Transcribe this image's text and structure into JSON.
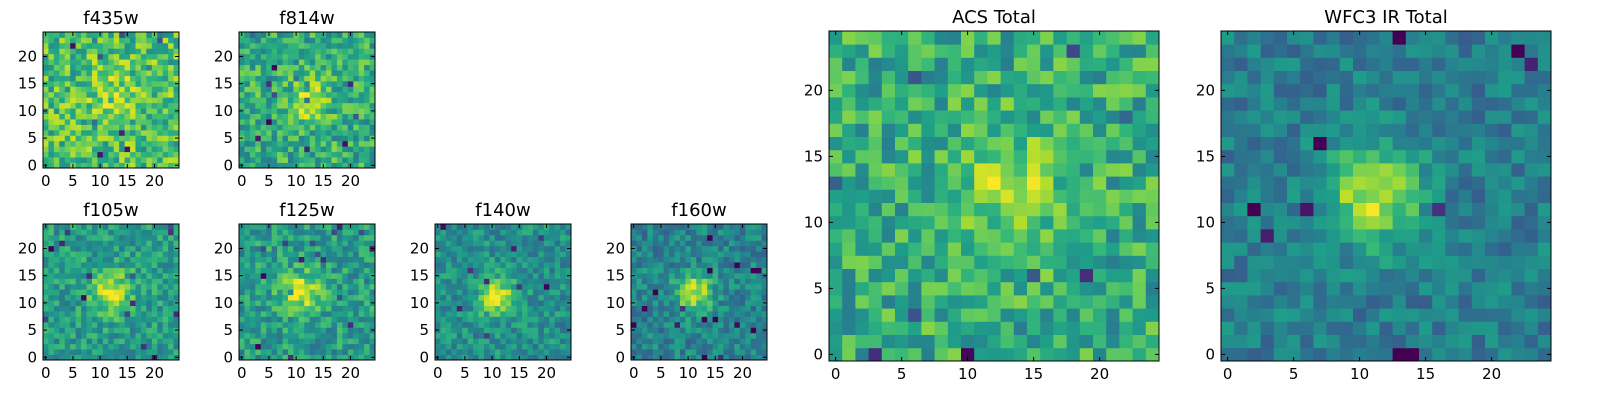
{
  "colormap": "viridis",
  "colors": {
    "viridis_low": "#440154",
    "viridis_mid": "#21918c",
    "viridis_high": "#fde725",
    "frame": "#000000"
  },
  "chart_data": [
    {
      "id": "f435w",
      "type": "heatmap",
      "title": "f435w",
      "size": 25,
      "xticks": [
        "0",
        "5",
        "10",
        "15",
        "20"
      ],
      "yticks": [
        "0",
        "5",
        "10",
        "15",
        "20"
      ],
      "xlim": [
        0,
        25
      ],
      "ylim": [
        0,
        25
      ],
      "center": [
        13,
        13
      ],
      "amplitude": 0.12,
      "sigma": 3.5,
      "base": 0.7,
      "noise": 0.22,
      "seed": 11
    },
    {
      "id": "f814w",
      "type": "heatmap",
      "title": "f814w",
      "size": 25,
      "xticks": [
        "0",
        "5",
        "10",
        "15",
        "20"
      ],
      "yticks": [
        "0",
        "5",
        "10",
        "15",
        "20"
      ],
      "xlim": [
        0,
        25
      ],
      "ylim": [
        0,
        25
      ],
      "center": [
        12,
        12
      ],
      "amplitude": 0.25,
      "sigma": 3.0,
      "base": 0.62,
      "noise": 0.2,
      "seed": 23
    },
    {
      "id": "f105w",
      "type": "heatmap",
      "title": "f105w",
      "size": 25,
      "xticks": [
        "0",
        "5",
        "10",
        "15",
        "20"
      ],
      "yticks": [
        "0",
        "5",
        "10",
        "15",
        "20"
      ],
      "xlim": [
        0,
        25
      ],
      "ylim": [
        0,
        25
      ],
      "center": [
        12,
        12
      ],
      "amplitude": 0.4,
      "sigma": 2.6,
      "base": 0.55,
      "noise": 0.16,
      "seed": 37
    },
    {
      "id": "f125w",
      "type": "heatmap",
      "title": "f125w",
      "size": 25,
      "xticks": [
        "0",
        "5",
        "10",
        "15",
        "20"
      ],
      "yticks": [
        "0",
        "5",
        "10",
        "15",
        "20"
      ],
      "xlim": [
        0,
        25
      ],
      "ylim": [
        0,
        25
      ],
      "center": [
        11,
        12
      ],
      "amplitude": 0.38,
      "sigma": 2.6,
      "base": 0.55,
      "noise": 0.17,
      "seed": 41
    },
    {
      "id": "f140w",
      "type": "heatmap",
      "title": "f140w",
      "size": 25,
      "xticks": [
        "0",
        "5",
        "10",
        "15",
        "20"
      ],
      "yticks": [
        "0",
        "5",
        "10",
        "15",
        "20"
      ],
      "xlim": [
        0,
        25
      ],
      "ylim": [
        0,
        25
      ],
      "center": [
        11,
        11
      ],
      "amplitude": 0.45,
      "sigma": 2.4,
      "base": 0.5,
      "noise": 0.15,
      "seed": 53
    },
    {
      "id": "f160w",
      "type": "heatmap",
      "title": "f160w",
      "size": 25,
      "xticks": [
        "0",
        "5",
        "10",
        "15",
        "20"
      ],
      "yticks": [
        "0",
        "5",
        "10",
        "15",
        "20"
      ],
      "xlim": [
        0,
        25
      ],
      "ylim": [
        0,
        25
      ],
      "center": [
        11,
        12
      ],
      "amplitude": 0.48,
      "sigma": 2.4,
      "base": 0.45,
      "noise": 0.15,
      "seed": 67
    },
    {
      "id": "acs_total",
      "type": "heatmap",
      "title": "ACS Total",
      "size": 25,
      "xticks": [
        "0",
        "5",
        "10",
        "15",
        "20"
      ],
      "yticks": [
        "0",
        "5",
        "10",
        "15",
        "20"
      ],
      "xlim": [
        0,
        25
      ],
      "ylim": [
        0,
        25
      ],
      "center": [
        13,
        13
      ],
      "amplitude": 0.25,
      "sigma": 2.8,
      "base": 0.62,
      "noise": 0.2,
      "seed": 79
    },
    {
      "id": "wfc3_ir_total",
      "type": "heatmap",
      "title": "WFC3 IR Total",
      "size": 25,
      "xticks": [
        "0",
        "5",
        "10",
        "15",
        "20"
      ],
      "yticks": [
        "0",
        "5",
        "10",
        "15",
        "20"
      ],
      "xlim": [
        0,
        25
      ],
      "ylim": [
        0,
        25
      ],
      "center": [
        11,
        12
      ],
      "amplitude": 0.5,
      "sigma": 2.5,
      "base": 0.42,
      "noise": 0.13,
      "seed": 97
    }
  ]
}
